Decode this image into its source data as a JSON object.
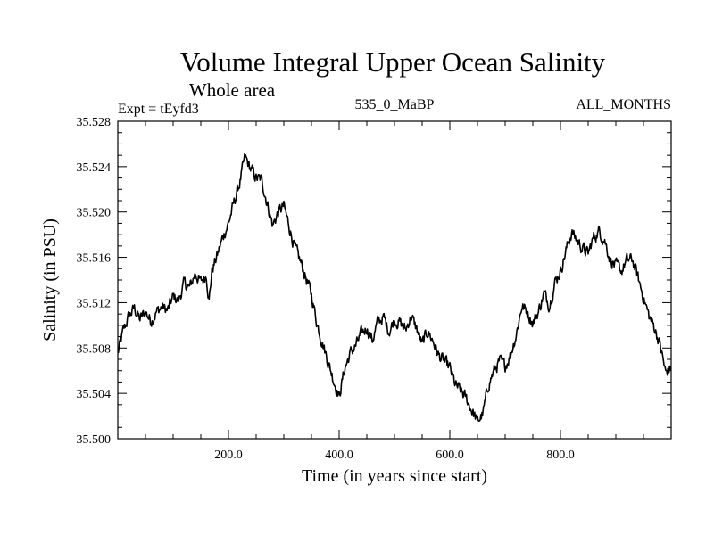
{
  "chart_data": {
    "type": "line",
    "title": "Volume Integral Upper Ocean Salinity",
    "subtitle": "Whole area",
    "annotations": {
      "left": "Expt = tEyfd3",
      "center": "535_0_MaBP",
      "right": "ALL_MONTHS"
    },
    "xlabel": "Time (in years since start)",
    "ylabel": "Salinity (in PSU)",
    "xlim": [
      0,
      1000
    ],
    "ylim": [
      35.5,
      35.528
    ],
    "xticks": [
      {
        "value": 200,
        "label": "200.0"
      },
      {
        "value": 400,
        "label": "400.0"
      },
      {
        "value": 600,
        "label": "600.0"
      },
      {
        "value": 800,
        "label": "800.0"
      }
    ],
    "yticks": [
      {
        "value": 35.5,
        "label": "35.500"
      },
      {
        "value": 35.504,
        "label": "35.504"
      },
      {
        "value": 35.508,
        "label": "35.508"
      },
      {
        "value": 35.512,
        "label": "35.512"
      },
      {
        "value": 35.516,
        "label": "35.516"
      },
      {
        "value": 35.52,
        "label": "35.520"
      },
      {
        "value": 35.524,
        "label": "35.524"
      },
      {
        "value": 35.528,
        "label": "35.528"
      }
    ],
    "grid": false,
    "series": [
      {
        "name": "Salinity",
        "color": "#000000",
        "x": [
          0,
          10,
          20,
          30,
          40,
          50,
          60,
          70,
          80,
          90,
          100,
          110,
          120,
          130,
          140,
          150,
          160,
          165,
          170,
          180,
          190,
          200,
          210,
          220,
          230,
          240,
          250,
          260,
          270,
          280,
          290,
          300,
          310,
          320,
          330,
          340,
          350,
          360,
          370,
          380,
          390,
          400,
          410,
          420,
          430,
          440,
          450,
          460,
          470,
          480,
          490,
          500,
          510,
          520,
          530,
          540,
          550,
          560,
          570,
          580,
          590,
          600,
          610,
          620,
          630,
          640,
          650,
          660,
          670,
          680,
          690,
          700,
          710,
          720,
          730,
          740,
          750,
          760,
          770,
          780,
          790,
          800,
          810,
          820,
          830,
          840,
          850,
          860,
          870,
          880,
          890,
          900,
          910,
          920,
          930,
          940,
          950,
          960,
          970,
          980,
          990,
          1000
        ],
        "values": [
          35.5075,
          35.5095,
          35.5108,
          35.5115,
          35.5105,
          35.5112,
          35.5104,
          35.5112,
          35.5116,
          35.5113,
          35.5125,
          35.5122,
          35.5137,
          35.5133,
          35.5146,
          35.5138,
          35.5145,
          35.5122,
          35.5148,
          35.5162,
          35.5178,
          35.519,
          35.5208,
          35.5225,
          35.5248,
          35.5238,
          35.523,
          35.5228,
          35.5208,
          35.5188,
          35.52,
          35.5205,
          35.5187,
          35.5168,
          35.5156,
          35.5142,
          35.5127,
          35.5102,
          35.5085,
          35.5068,
          35.5052,
          35.5037,
          35.5062,
          35.5075,
          35.5082,
          35.5092,
          35.5098,
          35.5087,
          35.5103,
          35.5107,
          35.5095,
          35.5105,
          35.5102,
          35.5096,
          35.5108,
          35.5097,
          35.5083,
          35.5095,
          35.5086,
          35.5073,
          35.5068,
          35.5062,
          35.5047,
          35.5042,
          35.5035,
          35.5025,
          35.5015,
          35.5022,
          35.5048,
          35.506,
          35.5068,
          35.5064,
          35.5075,
          35.5092,
          35.5117,
          35.5112,
          35.5102,
          35.5112,
          35.5128,
          35.5118,
          35.5138,
          35.5148,
          35.5166,
          35.5182,
          35.5175,
          35.5168,
          35.5163,
          35.5178,
          35.5183,
          35.5175,
          35.5158,
          35.5152,
          35.5148,
          35.5157,
          35.5158,
          35.5142,
          35.5125,
          35.5108,
          35.5098,
          35.5083,
          35.5058,
          35.5063
        ]
      }
    ]
  }
}
